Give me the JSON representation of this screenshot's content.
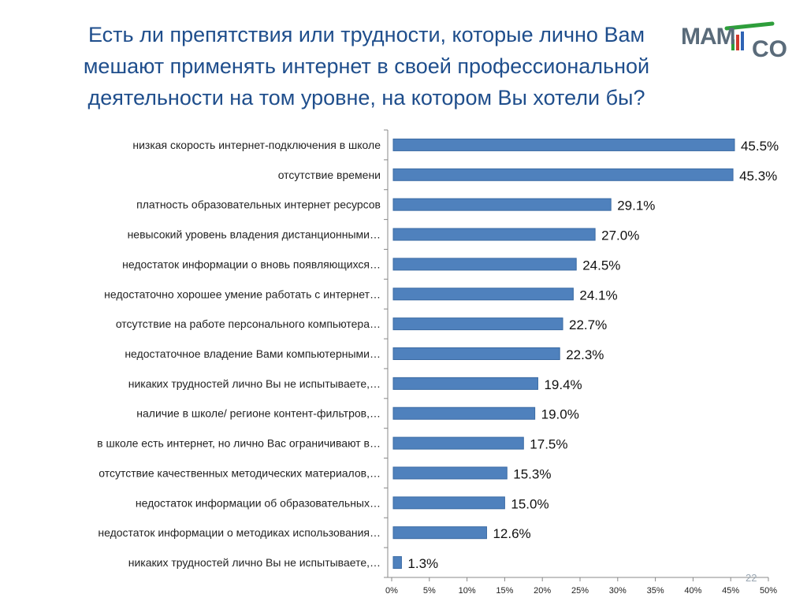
{
  "title_lines": [
    "Есть ли  препятствия или  трудности, которые лично Вам",
    "мешают применять интернет в своей профессиональной",
    "деятельности на том уровне, на котором Вы хотели бы?"
  ],
  "logo": {
    "text_left": "MAM",
    "text_right": "CO",
    "color": "#5a6b7a",
    "accent": "#2e9e3b"
  },
  "slide_number": "22",
  "chart_data": {
    "type": "bar",
    "orientation": "horizontal",
    "categories": [
      "низкая скорость интернет-подключения в школе",
      "отсутствие времени",
      "платность образовательных интернет ресурсов",
      "невысокий уровень владения  дистанционными…",
      "недостаток информации о вновь появляющихся…",
      "недостаточно хорошее  умение работать с  интернет…",
      "отсутствие на работе персонального компьютера…",
      "недостаточное владение Вами   компьютерными…",
      "никаких трудностей лично Вы не испытываете,…",
      "наличие в школе/ регионе контент-фильтров,…",
      "в школе есть интернет, но лично Вас ограничивают в…",
      "отсутствие качественных методических материалов,…",
      "недостаток информации об образовательных…",
      "недостаток информации о методиках использования…",
      "никаких трудностей лично Вы не испытываете,…"
    ],
    "values": [
      45.5,
      45.3,
      29.1,
      27.0,
      24.5,
      24.1,
      22.7,
      22.3,
      19.4,
      19.0,
      17.5,
      15.3,
      15.0,
      12.6,
      1.3
    ],
    "value_labels": [
      "45.5%",
      "45.3%",
      "29.1%",
      "27.0%",
      "24.5%",
      "24.1%",
      "22.7%",
      "22.3%",
      "19.4%",
      "19.0%",
      "17.5%",
      "15.3%",
      "15.0%",
      "12.6%",
      "1.3%"
    ],
    "x_ticks": [
      0,
      5,
      10,
      15,
      20,
      25,
      30,
      35,
      40,
      45,
      50
    ],
    "x_tick_labels": [
      "0%",
      "5%",
      "10%",
      "15%",
      "20%",
      "25%",
      "30%",
      "35%",
      "40%",
      "45%",
      "50%"
    ],
    "xlim": [
      0,
      50
    ],
    "grid": false,
    "bar_color": "#4f81bd",
    "bar_edge_color": "#3a6aa3"
  }
}
